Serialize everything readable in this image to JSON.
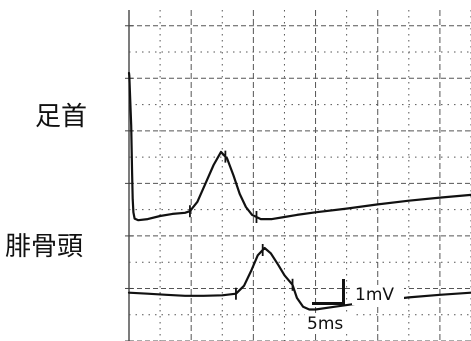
{
  "chart_data": {
    "type": "line",
    "title": "",
    "xlabel": "",
    "ylabel": "",
    "x_unit": "ms",
    "y_unit": "mV",
    "grid": true,
    "grid_x_step": 5,
    "grid_y_step": 0.5,
    "xlim": [
      0,
      55
    ],
    "ylim": [
      0,
      6.3
    ],
    "colors": {
      "trace": "#111111",
      "grid_dotted": "#555555",
      "grid_solid": "#444444",
      "background": "#ffffff"
    },
    "scale_bar": {
      "time_label": "5ms",
      "voltage_label": "1mV",
      "time_value_ms": 5,
      "voltage_value_mv": 1
    },
    "series": [
      {
        "name": "足首",
        "x": [
          0,
          0.05,
          0.15,
          0.35,
          0.5,
          0.6,
          0.7,
          0.9,
          1.5,
          3,
          5,
          7,
          9,
          9.8,
          11,
          12.3,
          13.6,
          14.8,
          15.8,
          16.8,
          17.8,
          18.8,
          19.8,
          21.2,
          23,
          25,
          27,
          30,
          35,
          40,
          45,
          50,
          55
        ],
        "y": [
          5.1,
          5.05,
          4.75,
          4.1,
          3.2,
          2.7,
          2.45,
          2.33,
          2.3,
          2.32,
          2.38,
          2.42,
          2.44,
          2.47,
          2.65,
          3.0,
          3.35,
          3.6,
          3.47,
          3.15,
          2.8,
          2.55,
          2.4,
          2.32,
          2.32,
          2.36,
          2.4,
          2.45,
          2.52,
          2.6,
          2.67,
          2.73,
          2.78
        ],
        "markers_x": [
          9.8,
          15.5,
          20.5
        ]
      },
      {
        "name": "腓骨頭",
        "x": [
          0,
          3,
          6,
          9,
          12,
          15,
          17.2,
          18.5,
          19.7,
          20.7,
          21.8,
          22.8,
          24,
          25,
          26.3,
          27,
          28,
          29,
          30,
          33,
          36,
          40,
          45,
          50,
          55
        ],
        "y": [
          0.92,
          0.9,
          0.88,
          0.86,
          0.86,
          0.87,
          0.9,
          1.05,
          1.35,
          1.63,
          1.77,
          1.67,
          1.45,
          1.25,
          1.07,
          0.82,
          0.65,
          0.6,
          0.6,
          0.65,
          0.7,
          0.76,
          0.83,
          0.88,
          0.92
        ],
        "markers_x": [
          17.2,
          21.5,
          26.3
        ]
      }
    ]
  }
}
